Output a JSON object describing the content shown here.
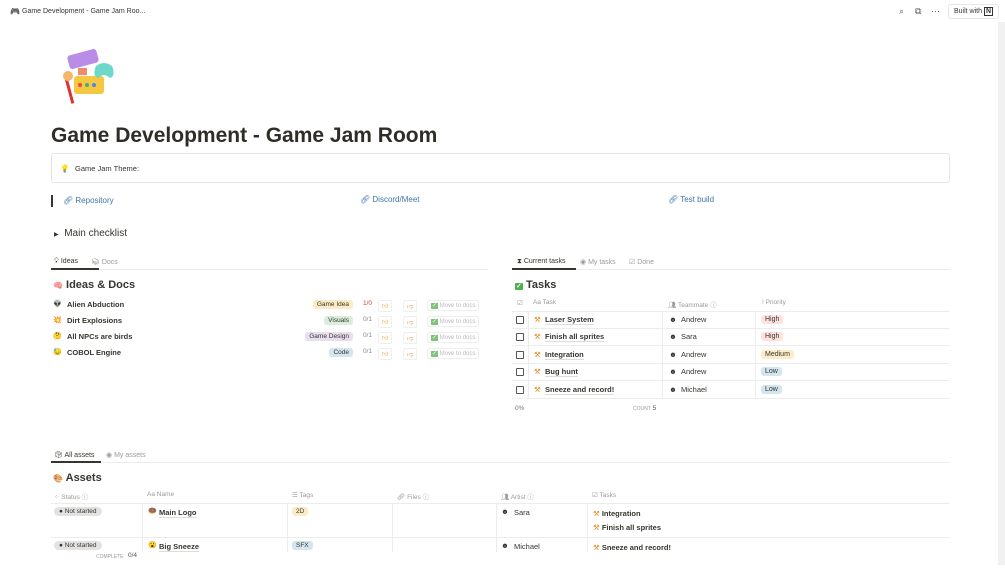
{
  "topbar": {
    "title": "Game Development - Game Jam Roo...",
    "search_icon": "search-icon",
    "duplicate_icon": "duplicate-icon",
    "more_icon": "more-icon",
    "built_with": "Built with",
    "notion_logo": "N"
  },
  "page": {
    "title": "Game Development - Game Jam Room",
    "callout": {
      "icon": "lightbulb-icon",
      "text": "Game Jam Theme:"
    },
    "links": [
      "Repository",
      "Discord/Meet",
      "Test build"
    ],
    "toggle": "Main checklist"
  },
  "ideas": {
    "tabs": [
      "Ideas",
      "Docs"
    ],
    "title": "Ideas & Docs",
    "move_label": "Move to docs",
    "items": [
      {
        "emoji": "👽",
        "name": "Alien Abduction",
        "tag": "Game Idea",
        "tag_color": "#fbecc6",
        "votes": "1/0"
      },
      {
        "emoji": "💥",
        "name": "Dirt Explosions",
        "tag": "Visuals",
        "tag_color": "#dbeddb",
        "votes": "0/1"
      },
      {
        "emoji": "🤔",
        "name": "All NPCs are birds",
        "tag": "Game Design",
        "tag_color": "#e8deee",
        "votes": "0/1"
      },
      {
        "emoji": "😓",
        "name": "COBOL Engine",
        "tag": "Code",
        "tag_color": "#d3e5ef",
        "votes": "0/1"
      }
    ]
  },
  "tasks": {
    "tabs": [
      "Current tasks",
      "My tasks",
      "Done"
    ],
    "title": "Tasks",
    "headers": [
      "Task",
      "Teammate",
      "Priority"
    ],
    "rows": [
      {
        "task": "Laser System",
        "teammate": "Andrew",
        "priority": "High",
        "color": "#ffe2dd"
      },
      {
        "task": "Finish all sprites",
        "teammate": "Sara",
        "priority": "High",
        "color": "#ffe2dd"
      },
      {
        "task": "Integration",
        "teammate": "Andrew",
        "priority": "Medium",
        "color": "#fdecc8"
      },
      {
        "task": "Bug hunt",
        "teammate": "Andrew",
        "priority": "Low",
        "color": "#d3e5ef"
      },
      {
        "task": "Sneeze and record!",
        "teammate": "Michael",
        "priority": "Low",
        "color": "#d3e5ef"
      }
    ],
    "footer_percent": "0%",
    "count_label": "COUNT",
    "count": "5"
  },
  "assets": {
    "tabs": [
      "All assets",
      "My assets"
    ],
    "title": "Assets",
    "headers": [
      "Status",
      "Name",
      "Tags",
      "Files",
      "Artist",
      "Tasks"
    ],
    "rows": [
      {
        "status": "Not started",
        "emoji": "🍩",
        "name": "Main Logo",
        "tag": "2D",
        "tag_color": "#fbecc6",
        "artist": "Sara",
        "tasks": [
          "Integration",
          "Finish all sprites"
        ]
      },
      {
        "status": "Not started",
        "emoji": "😮",
        "name": "Big Sneeze",
        "tag": "SFX",
        "tag_color": "#d3e5ef",
        "artist": "Michael",
        "tasks": [
          "Sneeze and record!"
        ]
      }
    ],
    "complete_label": "COMPLETE",
    "complete": "0/4"
  }
}
